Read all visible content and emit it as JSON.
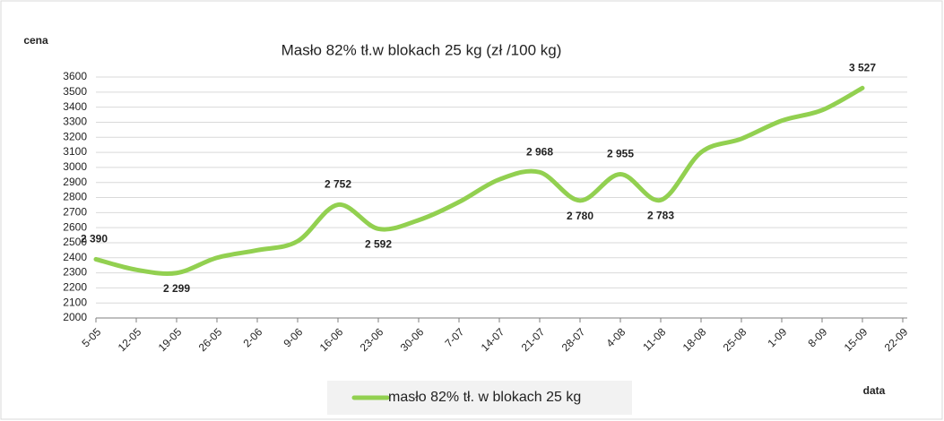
{
  "chart_data": {
    "type": "line",
    "title": "Masło 82% tł.w blokach  25 kg (zł /100 kg)",
    "ylabel": "cena",
    "xlabel": "data",
    "categories": [
      "5-05",
      "12-05",
      "19-05",
      "26-05",
      "2-06",
      "9-06",
      "16-06",
      "23-06",
      "30-06",
      "7-07",
      "14-07",
      "21-07",
      "28-07",
      "4-08",
      "11-08",
      "18-08",
      "25-08",
      "1-09",
      "8-09",
      "15-09",
      "22-09"
    ],
    "series": [
      {
        "name": "masło 82% tł. w blokach 25 kg",
        "color": "#92d050",
        "values": [
          2390,
          2320,
          2299,
          2400,
          2450,
          2510,
          2752,
          2592,
          2650,
          2770,
          2920,
          2968,
          2780,
          2955,
          2783,
          3100,
          3190,
          3310,
          3380,
          3527,
          null
        ],
        "value_labels": [
          "2 390",
          null,
          "2 299",
          null,
          null,
          null,
          "2 752",
          "2 592",
          null,
          null,
          null,
          "2 968",
          "2 780",
          "2 955",
          "2 783",
          null,
          null,
          null,
          null,
          "3 527",
          null
        ]
      }
    ],
    "ylim": [
      2000,
      3600
    ],
    "yticks": [
      2000,
      2100,
      2200,
      2300,
      2400,
      2500,
      2600,
      2700,
      2800,
      2900,
      3000,
      3100,
      3200,
      3300,
      3400,
      3500,
      3600
    ],
    "grid": true
  }
}
